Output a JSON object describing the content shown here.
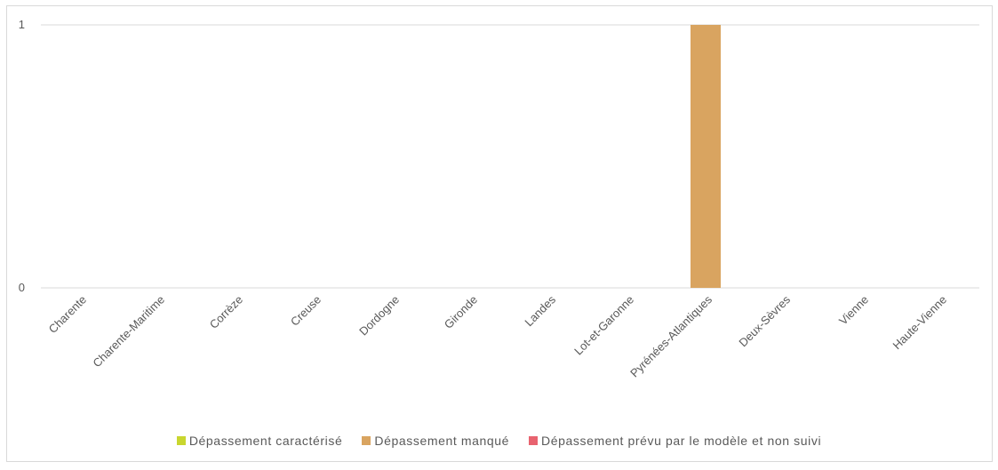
{
  "chart_data": {
    "type": "bar",
    "categories": [
      "Charente",
      "Charente-Maritime",
      "Corrèze",
      "Creuse",
      "Dordogne",
      "Gironde",
      "Landes",
      "Lot-et-Garonne",
      "Pyrénées-Atlantiques",
      "Deux-Sèvres",
      "Vienne",
      "Haute-Vienne"
    ],
    "series": [
      {
        "name": "Dépassement caractérisé",
        "color": "#c9d62f",
        "values": [
          0,
          0,
          0,
          0,
          0,
          0,
          0,
          0,
          0,
          0,
          0,
          0
        ]
      },
      {
        "name": "Dépassement manqué",
        "color": "#d9a460",
        "values": [
          0,
          0,
          0,
          0,
          0,
          0,
          0,
          0,
          1,
          0,
          0,
          0
        ]
      },
      {
        "name": "Dépassement prévu par le modèle et non suivi",
        "color": "#e8636f",
        "values": [
          0,
          0,
          0,
          0,
          0,
          0,
          0,
          0,
          0,
          0,
          0,
          0
        ]
      }
    ],
    "yticks": [
      "0",
      "1"
    ],
    "ylim": [
      0,
      1
    ],
    "grid": true,
    "legend_position": "bottom"
  }
}
